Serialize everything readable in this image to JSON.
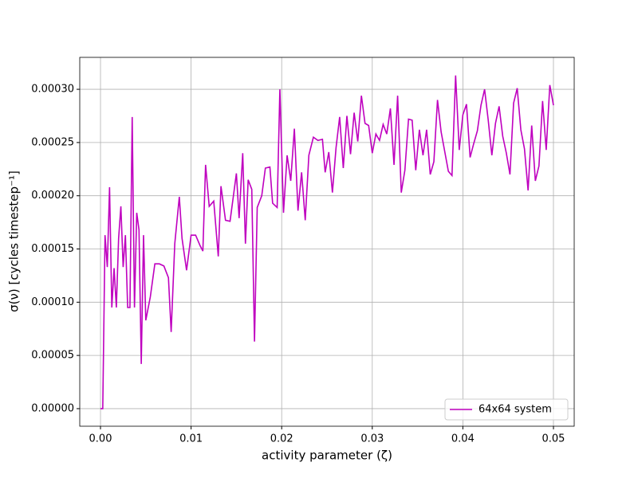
{
  "chart_data": {
    "type": "line",
    "xlabel": "activity parameter (ζ)",
    "ylabel": "σ(ν) [cycles timestep⁻¹]",
    "x": [
      0,
      0.00025,
      0.0005,
      0.00075,
      0.001,
      0.00125,
      0.0015,
      0.00175,
      0.002,
      0.00225,
      0.0025,
      0.00275,
      0.003,
      0.00325,
      0.0035,
      0.00375,
      0.004,
      0.00425,
      0.0045,
      0.00475,
      0.005,
      0.0055,
      0.006,
      0.0065,
      0.007,
      0.0075,
      0.0078,
      0.0082,
      0.0087,
      0.009,
      0.0095,
      0.01,
      0.0105,
      0.011,
      0.0113,
      0.0116,
      0.012,
      0.0125,
      0.013,
      0.0133,
      0.0138,
      0.0143,
      0.015,
      0.0153,
      0.0157,
      0.016,
      0.0163,
      0.0167,
      0.017,
      0.0173,
      0.0178,
      0.0182,
      0.0187,
      0.019,
      0.0195,
      0.0198,
      0.0202,
      0.0206,
      0.021,
      0.0214,
      0.0218,
      0.0222,
      0.0226,
      0.023,
      0.0235,
      0.024,
      0.0245,
      0.0248,
      0.0252,
      0.0256,
      0.026,
      0.0264,
      0.0268,
      0.0272,
      0.0276,
      0.028,
      0.0284,
      0.0288,
      0.0292,
      0.0296,
      0.03,
      0.0304,
      0.0308,
      0.0312,
      0.0316,
      0.032,
      0.0324,
      0.0328,
      0.0332,
      0.0336,
      0.034,
      0.0344,
      0.0348,
      0.0352,
      0.0356,
      0.036,
      0.0364,
      0.0368,
      0.0372,
      0.0376,
      0.0384,
      0.0388,
      0.0392,
      0.0396,
      0.04,
      0.0404,
      0.0408,
      0.0412,
      0.0416,
      0.042,
      0.0424,
      0.0428,
      0.0432,
      0.0436,
      0.044,
      0.0444,
      0.0448,
      0.0452,
      0.0456,
      0.046,
      0.0464,
      0.0468,
      0.0472,
      0.0476,
      0.048,
      0.0484,
      0.0488,
      0.0492,
      0.0496,
      0.05
    ],
    "series": [
      {
        "name": "64x64 system",
        "color": "#bf00bf",
        "values": [
          0,
          0,
          0.000163,
          0.000133,
          0.000208,
          9.5e-05,
          0.000132,
          9.5e-05,
          0.00016,
          0.00019,
          0.000133,
          0.000163,
          9.5e-05,
          9.5e-05,
          0.000274,
          9.5e-05,
          0.000184,
          0.000168,
          4.2e-05,
          0.000163,
          8.3e-05,
          0.000105,
          0.000136,
          0.000136,
          0.000134,
          0.000123,
          7.2e-05,
          0.000155,
          0.000199,
          0.00016,
          0.00013,
          0.000163,
          0.000163,
          0.000153,
          0.000148,
          0.000229,
          0.00019,
          0.000195,
          0.000143,
          0.000209,
          0.000177,
          0.000176,
          0.000221,
          0.000179,
          0.00024,
          0.000155,
          0.000215,
          0.000206,
          6.3e-05,
          0.000189,
          0.0002,
          0.000226,
          0.000227,
          0.000193,
          0.000189,
          0.0003,
          0.000184,
          0.000238,
          0.000214,
          0.000263,
          0.000186,
          0.000222,
          0.000177,
          0.000238,
          0.000255,
          0.000252,
          0.000253,
          0.000222,
          0.000241,
          0.000203,
          0.000245,
          0.000274,
          0.000226,
          0.000275,
          0.000239,
          0.000278,
          0.000251,
          0.000294,
          0.000268,
          0.000266,
          0.00024,
          0.000258,
          0.000252,
          0.000267,
          0.000258,
          0.000282,
          0.000229,
          0.000294,
          0.000203,
          0.000224,
          0.000272,
          0.000271,
          0.000224,
          0.000262,
          0.000238,
          0.000262,
          0.00022,
          0.000232,
          0.00029,
          0.00026,
          0.000223,
          0.000219,
          0.000313,
          0.000243,
          0.000276,
          0.000286,
          0.000236,
          0.000249,
          0.000261,
          0.000285,
          0.0003,
          0.000271,
          0.000238,
          0.000268,
          0.000284,
          0.000256,
          0.00024,
          0.00022,
          0.000287,
          0.000301,
          0.000262,
          0.000244,
          0.000205,
          0.000266,
          0.000214,
          0.000228,
          0.000289,
          0.000243,
          0.000304,
          0.000285
        ]
      }
    ],
    "xlim": [
      -0.00229,
      0.05229
    ],
    "ylim": [
      -1.65e-05,
      0.00033
    ],
    "xticks": [
      {
        "value": 0,
        "label": "0.00"
      },
      0.01,
      0.02,
      0.03,
      0.04,
      0.05
    ],
    "yticks": [
      {
        "value": 0,
        "label": "0.00000"
      },
      5e-05,
      {
        "value": 0.0001,
        "label": "0.00010"
      },
      0.00015,
      {
        "value": 0.0002,
        "label": "0.00020"
      },
      0.00025,
      {
        "value": 0.0003,
        "label": "0.00030"
      }
    ],
    "grid": true,
    "legend": "lower right"
  }
}
